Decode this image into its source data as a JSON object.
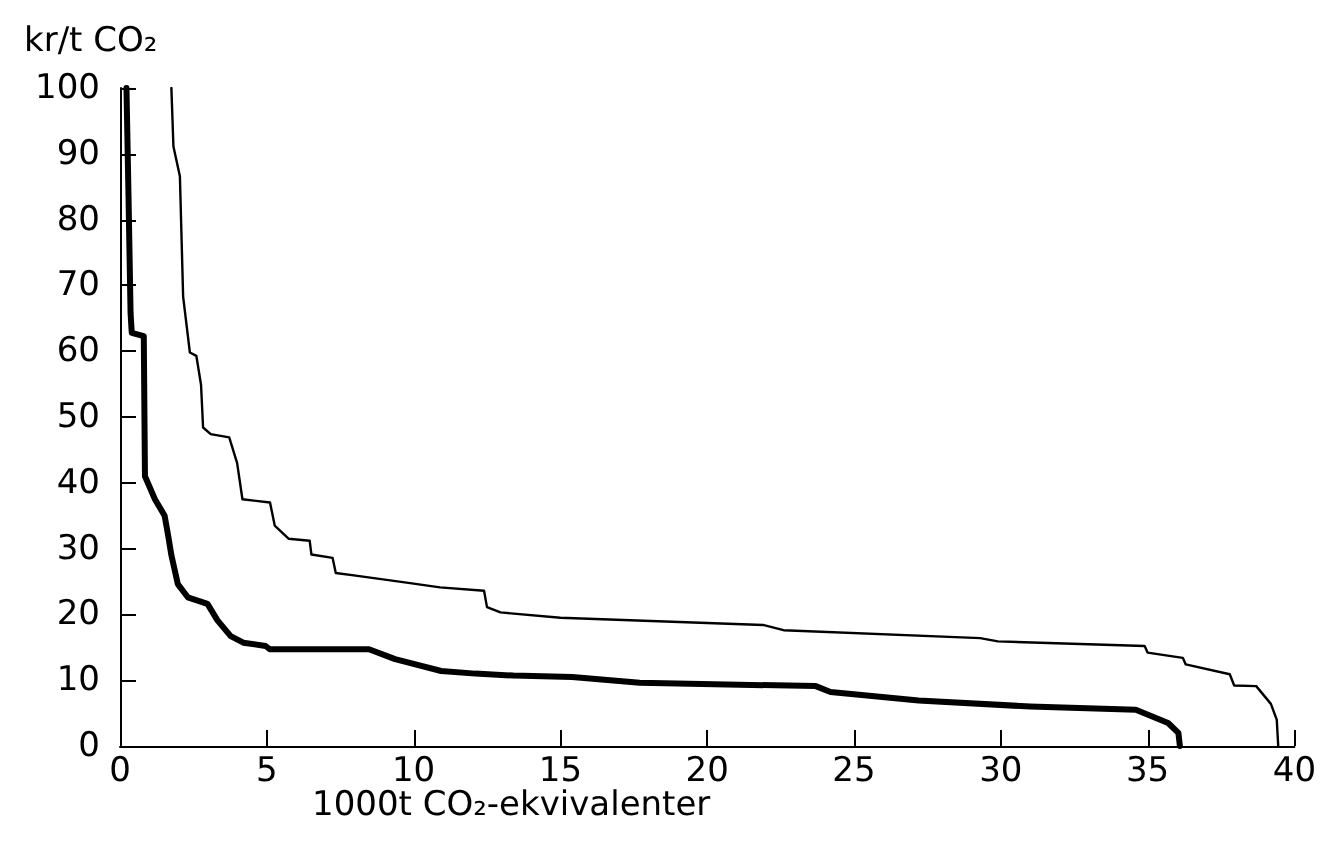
{
  "chart_data": {
    "type": "line",
    "xlabel": "1000t CO₂-ekvivalenter",
    "ylabel": "kr/t CO₂",
    "xlim": [
      0,
      40
    ],
    "xticks": [
      0,
      5,
      10,
      15,
      20,
      25,
      30,
      35,
      40
    ],
    "ylim": [
      0,
      100
    ],
    "yticks": [
      0,
      10,
      20,
      30,
      40,
      50,
      60,
      70,
      80,
      90,
      100
    ],
    "marker": "none",
    "line_style": "solid",
    "series": [
      {
        "color": "#000000",
        "x": [
          0.22,
          0.29,
          0.36,
          0.4,
          0.81,
          0.85,
          1.19,
          1.52,
          1.64,
          1.75,
          1.97,
          2.31,
          2.98,
          3.32,
          3.77,
          4.2,
          4.96,
          5.1,
          8.48,
          9.37,
          10.94,
          12.1,
          13.4,
          15.4,
          17.7,
          23.7,
          24.2,
          27.2,
          31,
          34.6,
          35.7,
          36.05,
          36.1
        ],
        "values": [
          100,
          83.6,
          65.8,
          62.8,
          62.3,
          41,
          37.5,
          35,
          32,
          29,
          24.6,
          22.6,
          21.6,
          19.1,
          16.7,
          15.7,
          15.2,
          14.7,
          14.7,
          13.2,
          11.4,
          11,
          10.7,
          10.5,
          9.6,
          9.1,
          8.2,
          6.9,
          6,
          5.5,
          3.5,
          2,
          0
        ]
      },
      {
        "color": "#000000",
        "x": [
          1.75,
          1.82,
          2.04,
          2.15,
          2.38,
          2.6,
          2.76,
          2.83,
          3.09,
          3.72,
          3.99,
          4.17,
          5.11,
          5.27,
          5.74,
          6.46,
          6.52,
          7.24,
          7.35,
          8.03,
          9.82,
          10.9,
          12.4,
          12.5,
          12.96,
          15,
          21.9,
          22.6,
          29.3,
          29.9,
          34.9,
          35,
          36.2,
          36.3,
          37.8,
          37.95,
          38.7,
          39.2,
          39.4,
          39.45
        ],
        "values": [
          100,
          91.1,
          86.6,
          68.3,
          59.8,
          59.3,
          54.9,
          48.4,
          47.4,
          46.9,
          43,
          37.5,
          37,
          33.5,
          31.5,
          31.2,
          29.1,
          28.6,
          26.3,
          25.9,
          24.8,
          24.1,
          23.6,
          21.1,
          20.3,
          19.5,
          18.4,
          17.6,
          16.4,
          15.9,
          15.2,
          14.2,
          13.4,
          12.4,
          10.9,
          9.2,
          9.1,
          6.4,
          4,
          0
        ]
      }
    ]
  }
}
